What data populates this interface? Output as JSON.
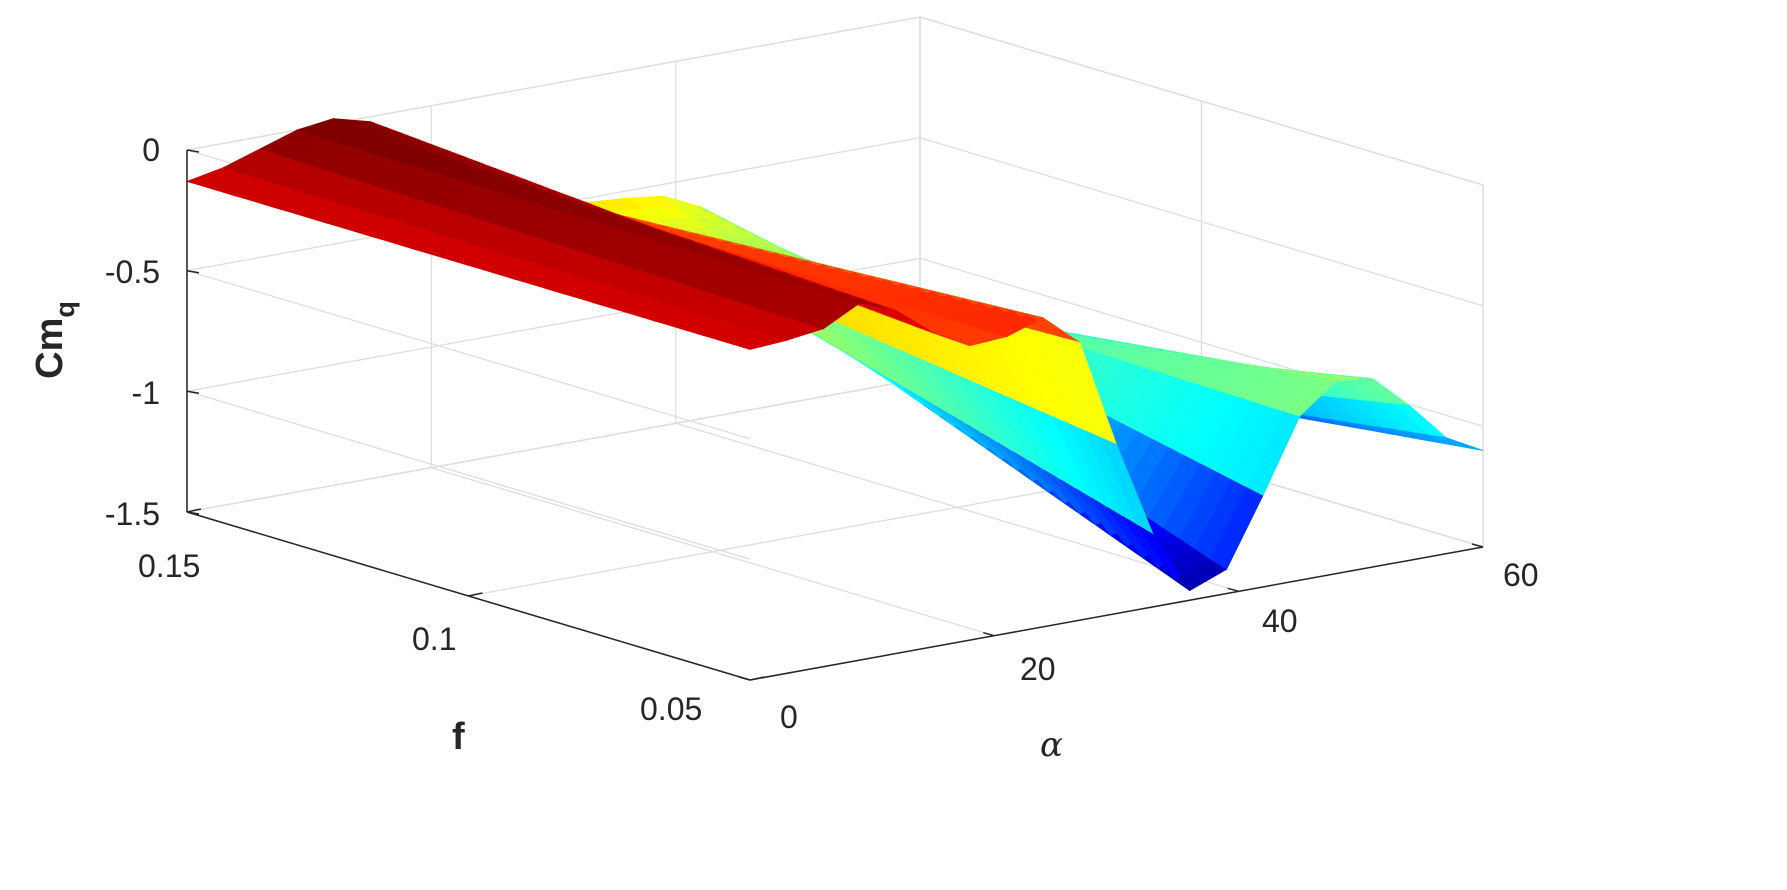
{
  "chart_data": {
    "type": "surface3d",
    "xlabel": "α",
    "ylabel": "f",
    "zlabel": "Cm",
    "zlabel_subscript": "q",
    "xlim": [
      0,
      60
    ],
    "ylim": [
      0.05,
      0.15
    ],
    "zlim": [
      -1.5,
      0
    ],
    "xticks": [
      "0",
      "20",
      "40",
      "60"
    ],
    "yticks": [
      "0.05",
      "0.1",
      "0.15"
    ],
    "zticks": [
      "0",
      "-0.5",
      "-1",
      "-1.5"
    ],
    "grid": true,
    "colormap": "jet",
    "surface_x": [
      0,
      3,
      6,
      9,
      12,
      15,
      18,
      21,
      24,
      27,
      30,
      33,
      36,
      39,
      42,
      45,
      48,
      51,
      54,
      57,
      60
    ],
    "surface_profile_near_f_0_15": [
      -0.13,
      -0.1,
      -0.05,
      0.0,
      0.02,
      -0.02,
      -0.12,
      -0.25,
      -0.35,
      -0.42,
      -0.48,
      -0.52,
      -0.53,
      -0.55,
      -0.62,
      -0.78,
      -0.98,
      -1.18,
      -1.3,
      -1.35,
      -1.38
    ],
    "surface_profile_near_f_0_05": [
      -0.13,
      -0.12,
      -0.1,
      -0.02,
      -0.08,
      -0.2,
      -0.28,
      -0.27,
      -0.22,
      -0.35,
      -0.8,
      -1.2,
      -1.46,
      -1.4,
      -1.12,
      -0.82,
      -0.7,
      -0.72,
      -0.86,
      -1.02,
      -1.1
    ]
  }
}
